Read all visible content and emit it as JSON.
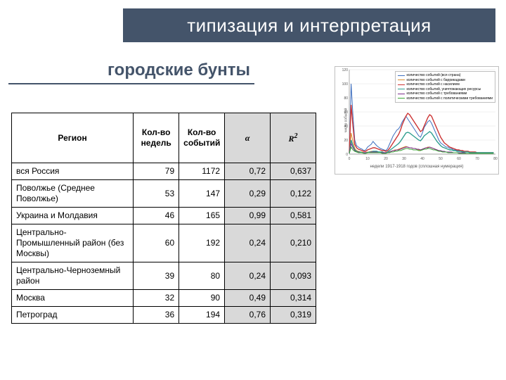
{
  "header": {
    "title": "типизация и интерпретация"
  },
  "subtitle": {
    "text": "городские бунты"
  },
  "table": {
    "columns": [
      {
        "label": "Регион",
        "shaded": false
      },
      {
        "label": "Кол-во недель",
        "shaded": false
      },
      {
        "label": "Кол-во событий",
        "shaded": false
      },
      {
        "label": "α",
        "shaded": true,
        "italic": true
      },
      {
        "label": "R2",
        "shaded": true,
        "italic": true,
        "sup": true
      }
    ],
    "rows": [
      {
        "region": "вся Россия",
        "weeks": "79",
        "events": "1172",
        "alpha": "0,72",
        "r2": "0,637"
      },
      {
        "region": "Поволжье (Среднее Поволжье)",
        "weeks": "53",
        "events": "147",
        "alpha": "0,29",
        "r2": "0,122"
      },
      {
        "region": "Украина и Молдавия",
        "weeks": "46",
        "events": "165",
        "alpha": "0,99",
        "r2": "0,581"
      },
      {
        "region": "Центрально-Промышленный район (без Москвы)",
        "weeks": "60",
        "events": "192",
        "alpha": "0,24",
        "r2": "0,210"
      },
      {
        "region": "Центрально-Черноземный район",
        "weeks": "39",
        "events": "80",
        "alpha": "0,24",
        "r2": "0,093"
      },
      {
        "region": "Москва",
        "weeks": "32",
        "events": "90",
        "alpha": "0,49",
        "r2": "0,314"
      },
      {
        "region": "Петроград",
        "weeks": "36",
        "events": "194",
        "alpha": "0,76",
        "r2": "0,319"
      }
    ],
    "shaded_bg": "#d9d9d9",
    "border_color": "#000000"
  },
  "chart": {
    "type": "line",
    "background_color": "#ffffff",
    "border_color": "#bfbfbf",
    "grid_color": "#e0e0e0",
    "xaxis": {
      "title": "недели 1917-1918 годов (сплошная нумерация)",
      "xlim": [
        0,
        80
      ],
      "tick_step": 10
    },
    "yaxis": {
      "title": "число событий",
      "ylim": [
        0,
        120
      ],
      "tick_step": 20
    },
    "legend_position": "top-right",
    "series": [
      {
        "name": "количество событий (вся страна)",
        "color": "#3f6fbf",
        "width": 1,
        "y": [
          3,
          100,
          55,
          20,
          12,
          10,
          8,
          7,
          5,
          6,
          10,
          12,
          14,
          18,
          15,
          12,
          10,
          8,
          7,
          6,
          5,
          8,
          14,
          20,
          26,
          30,
          34,
          36,
          40,
          46,
          50,
          54,
          50,
          46,
          42,
          38,
          34,
          30,
          26,
          24,
          30,
          38,
          42,
          46,
          48,
          44,
          38,
          32,
          26,
          20,
          16,
          14,
          12,
          10,
          10,
          8,
          8,
          6,
          6,
          5,
          5,
          4,
          4,
          4,
          3,
          3,
          3,
          3,
          2,
          2,
          2,
          2,
          2,
          2,
          2,
          2,
          2,
          2,
          2,
          2
        ]
      },
      {
        "name": "количество событий с баррикадами",
        "color": "#d98c2e",
        "width": 1,
        "y": [
          1,
          30,
          18,
          8,
          5,
          4,
          3,
          3,
          2,
          2,
          3,
          3,
          4,
          4,
          4,
          3,
          3,
          3,
          2,
          2,
          2,
          2,
          3,
          4,
          5,
          6,
          6,
          7,
          8,
          9,
          10,
          11,
          10,
          9,
          9,
          8,
          8,
          7,
          6,
          6,
          7,
          8,
          9,
          10,
          10,
          9,
          8,
          7,
          6,
          5,
          4,
          4,
          3,
          3,
          3,
          3,
          2,
          2,
          2,
          2,
          2,
          2,
          1,
          1,
          1,
          1,
          1,
          1,
          1,
          1,
          1,
          1,
          1,
          1,
          1,
          1,
          1,
          1,
          1,
          1
        ]
      },
      {
        "name": "количество событий с насилием",
        "color": "#cc3333",
        "width": 1.4,
        "y": [
          2,
          70,
          40,
          14,
          9,
          7,
          6,
          5,
          4,
          4,
          6,
          7,
          8,
          9,
          9,
          8,
          7,
          6,
          5,
          5,
          4,
          5,
          8,
          12,
          16,
          20,
          24,
          28,
          34,
          42,
          48,
          54,
          58,
          56,
          52,
          48,
          44,
          40,
          36,
          32,
          34,
          40,
          46,
          52,
          56,
          54,
          48,
          42,
          36,
          30,
          24,
          20,
          16,
          14,
          12,
          10,
          9,
          8,
          7,
          6,
          6,
          5,
          5,
          4,
          4,
          4,
          3,
          3,
          3,
          3,
          2,
          2,
          2,
          2,
          2,
          2,
          2,
          2,
          2,
          2
        ]
      },
      {
        "name": "количество событий, уничтожающих ресурсы",
        "color": "#2e9e8f",
        "width": 1.4,
        "y": [
          1,
          20,
          12,
          6,
          4,
          3,
          3,
          2,
          2,
          2,
          2,
          3,
          3,
          4,
          4,
          4,
          3,
          3,
          3,
          2,
          2,
          3,
          5,
          7,
          9,
          11,
          13,
          15,
          18,
          22,
          26,
          30,
          31,
          30,
          28,
          26,
          24,
          22,
          20,
          19,
          22,
          26,
          28,
          30,
          32,
          30,
          26,
          22,
          18,
          15,
          12,
          10,
          9,
          8,
          7,
          6,
          6,
          5,
          5,
          4,
          4,
          4,
          3,
          3,
          3,
          3,
          2,
          2,
          2,
          2,
          2,
          2,
          2,
          2,
          2,
          2,
          2,
          2,
          2,
          2
        ]
      },
      {
        "name": "количество событий с требованиями",
        "color": "#7b2e8c",
        "width": 1,
        "y": [
          1,
          15,
          9,
          5,
          3,
          3,
          2,
          2,
          2,
          2,
          2,
          2,
          3,
          3,
          3,
          3,
          2,
          2,
          2,
          2,
          2,
          2,
          3,
          4,
          5,
          5,
          6,
          6,
          7,
          8,
          9,
          10,
          10,
          9,
          9,
          8,
          8,
          7,
          7,
          6,
          7,
          8,
          9,
          9,
          10,
          9,
          8,
          7,
          6,
          5,
          5,
          4,
          4,
          3,
          3,
          3,
          3,
          2,
          2,
          2,
          2,
          2,
          2,
          2,
          1,
          1,
          1,
          1,
          1,
          1,
          1,
          1,
          1,
          1,
          1,
          1,
          1,
          1,
          1,
          1
        ]
      },
      {
        "name": "количество событий с политическими требованиями",
        "color": "#3aa537",
        "width": 1,
        "y": [
          1,
          10,
          6,
          4,
          3,
          2,
          2,
          2,
          1,
          1,
          2,
          2,
          2,
          2,
          2,
          2,
          2,
          2,
          1,
          1,
          1,
          2,
          2,
          3,
          3,
          4,
          4,
          5,
          5,
          6,
          7,
          8,
          8,
          7,
          7,
          6,
          6,
          6,
          5,
          5,
          6,
          7,
          7,
          8,
          8,
          7,
          6,
          6,
          5,
          4,
          4,
          3,
          3,
          3,
          2,
          2,
          2,
          2,
          2,
          2,
          1,
          1,
          1,
          1,
          1,
          1,
          1,
          1,
          1,
          1,
          1,
          1,
          1,
          1,
          1,
          1,
          1,
          1,
          1,
          1
        ]
      }
    ]
  }
}
